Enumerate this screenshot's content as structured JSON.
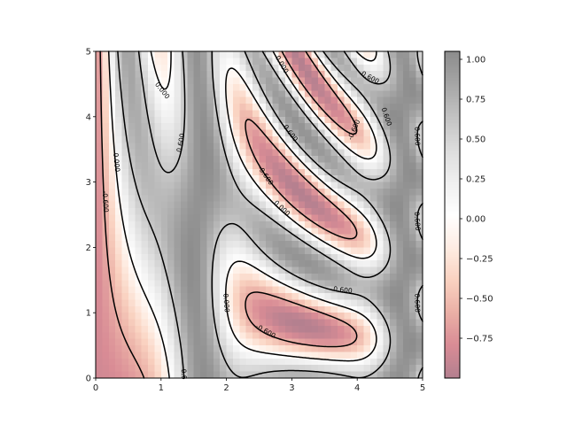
{
  "chart_data": {
    "type": "heatmap",
    "subtype": "filled-image-with-contour-lines",
    "title": "",
    "xlabel": "",
    "ylabel": "",
    "function": "z = sin(x)^10 + cos(10 + y*x) * cos(x)",
    "xlim": [
      0,
      5
    ],
    "ylim": [
      0,
      5
    ],
    "x_ticks": [
      "0",
      "1",
      "2",
      "3",
      "4",
      "5"
    ],
    "y_ticks": [
      "0",
      "1",
      "2",
      "3",
      "4",
      "5"
    ],
    "grid": "off",
    "colormap": "RdGy",
    "alpha": 0.5,
    "color_range": [
      -1.0,
      1.05
    ],
    "colorbar": {
      "placement": "right",
      "ticks": [
        "1.00",
        "0.75",
        "0.50",
        "0.25",
        "0.00",
        "−0.25",
        "−0.50",
        "−0.75"
      ],
      "tick_values": [
        1.0,
        0.75,
        0.5,
        0.25,
        0.0,
        -0.25,
        -0.5,
        -0.75
      ]
    },
    "contour_levels": [
      -0.6,
      0.0,
      0.6
    ],
    "contour_level_labels": [
      "-0.600",
      "0.000",
      "0.600"
    ],
    "contour_color": "#000000",
    "negative_linestyle": "dashed",
    "contour_labels": [
      {
        "text": "0.000",
        "x": 1.02,
        "y": 4.4
      },
      {
        "text": "0.600",
        "x": 1.3,
        "y": 3.6
      },
      {
        "text": "0.000",
        "x": 0.32,
        "y": 3.3
      },
      {
        "text": "-0.600",
        "x": 0.15,
        "y": 2.7
      },
      {
        "text": "0.000",
        "x": 2.85,
        "y": 4.8
      },
      {
        "text": "0.600",
        "x": 4.2,
        "y": 4.6
      },
      {
        "text": "0.600",
        "x": 4.45,
        "y": 4.0
      },
      {
        "text": "-0.600",
        "x": 3.95,
        "y": 3.8
      },
      {
        "text": "0.600",
        "x": 2.98,
        "y": 3.75
      },
      {
        "text": "-0.600",
        "x": 2.6,
        "y": 3.1
      },
      {
        "text": "0.000",
        "x": 2.85,
        "y": 2.6
      },
      {
        "text": "0.600",
        "x": 4.92,
        "y": 3.7
      },
      {
        "text": "0.600",
        "x": 4.92,
        "y": 2.4
      },
      {
        "text": "0.600",
        "x": 3.78,
        "y": 1.35
      },
      {
        "text": "0.000",
        "x": 2.0,
        "y": 1.15
      },
      {
        "text": "-0.600",
        "x": 2.6,
        "y": 0.72
      },
      {
        "text": "0.600",
        "x": 4.92,
        "y": 1.15
      },
      {
        "text": "0.6",
        "x": 1.35,
        "y": 0.06
      }
    ]
  }
}
